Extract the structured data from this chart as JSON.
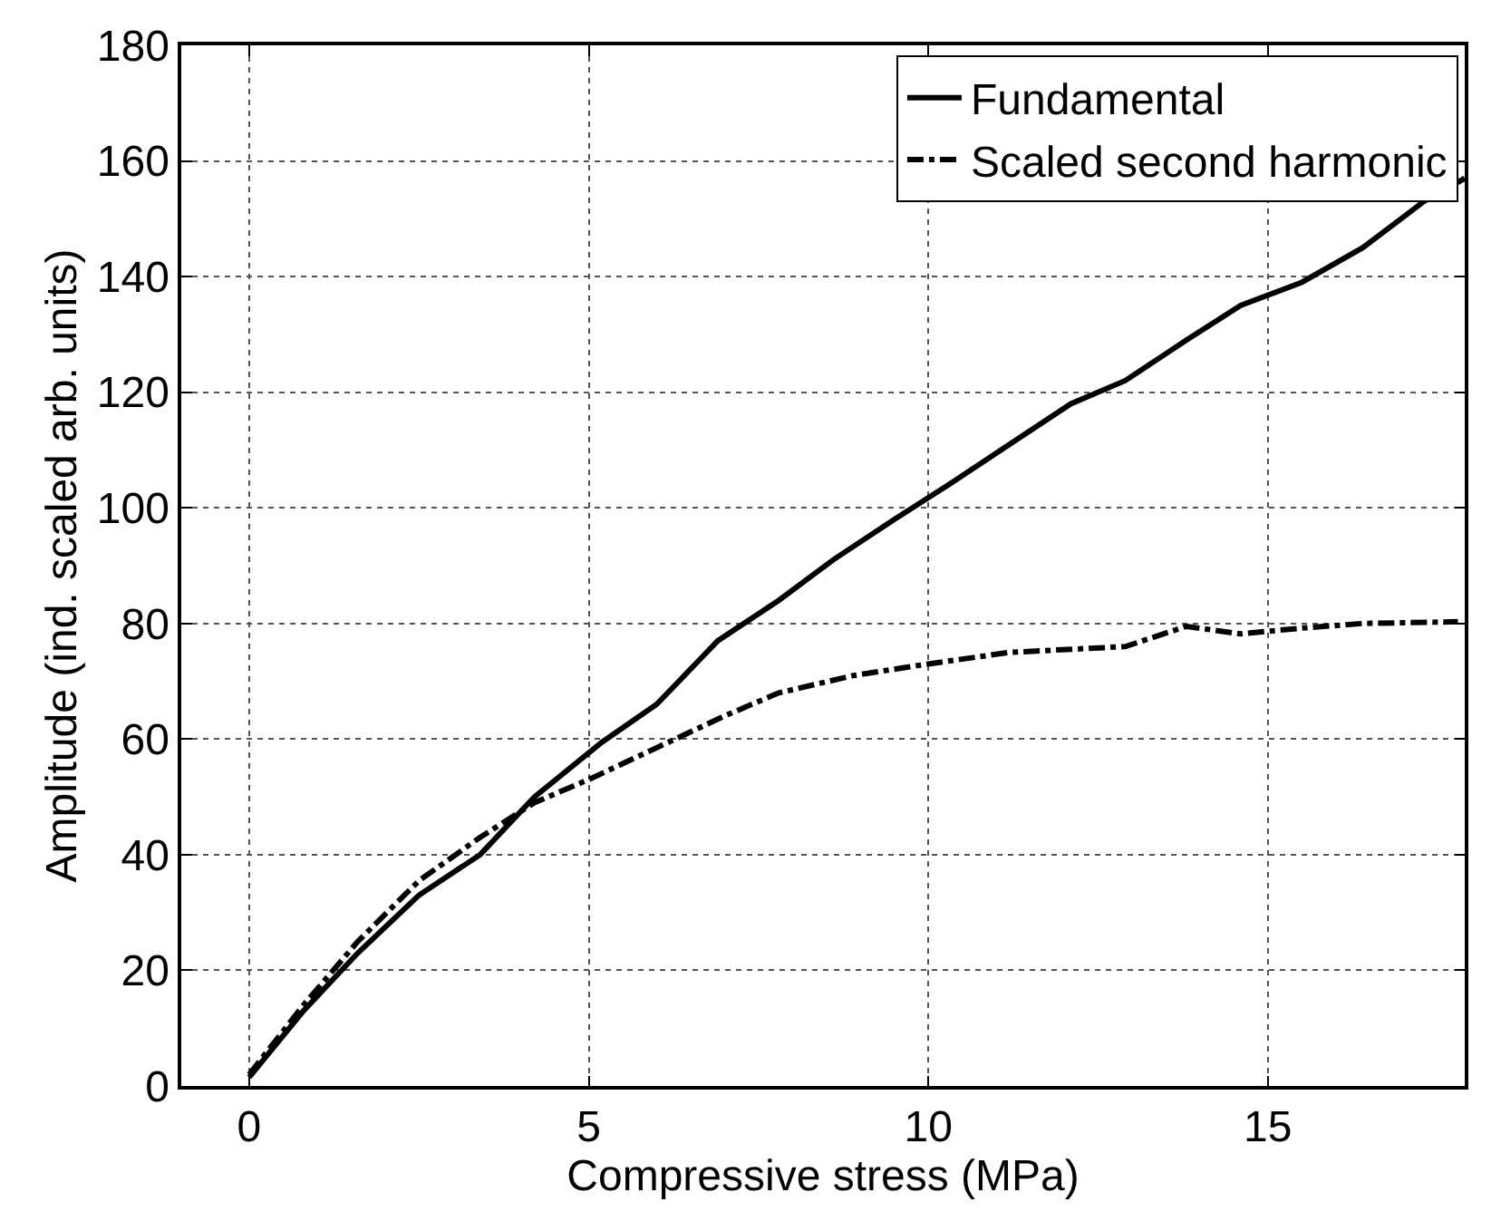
{
  "chart_data": {
    "type": "line",
    "xlabel": "Compressive stress (MPa)",
    "ylabel": "Amplitude (ind. scaled arb. units)",
    "xlim": [
      -1,
      17.9
    ],
    "xticks": [
      0,
      5,
      10,
      15
    ],
    "ylim": [
      0,
      180
    ],
    "yticks": [
      0,
      20,
      40,
      60,
      80,
      100,
      120,
      140,
      160,
      180
    ],
    "grid": true,
    "legend": "top right",
    "marker": "none",
    "series": [
      {
        "name": "Fundamental",
        "color": "#000000",
        "line_style": "solid",
        "x": [
          0,
          0.8,
          1.6,
          2.5,
          3.4,
          4.2,
          5.2,
          6.0,
          6.9,
          7.8,
          8.6,
          9.5,
          10.3,
          11.2,
          12.1,
          12.9,
          13.8,
          14.6,
          15.5,
          16.4,
          17.3,
          17.9
        ],
        "values": [
          1.5,
          13,
          23,
          33,
          40,
          50,
          59.5,
          66,
          77,
          84,
          91,
          98,
          104,
          111,
          118,
          122,
          129,
          135,
          139,
          145,
          153,
          157
        ]
      },
      {
        "name": "Scaled second harmonic",
        "color": "#000000",
        "line_style": "dashdot",
        "x": [
          0,
          0.8,
          1.6,
          2.5,
          3.4,
          4.2,
          5.0,
          6.0,
          7.0,
          7.8,
          8.9,
          10.0,
          11.2,
          12.9,
          13.8,
          14.6,
          15.5,
          16.4,
          17.8
        ],
        "values": [
          2,
          14,
          25,
          35.5,
          43,
          49,
          53,
          58.5,
          64,
          68,
          71,
          73,
          75,
          76,
          79.5,
          78.2,
          79.2,
          80,
          80.3
        ]
      }
    ]
  }
}
